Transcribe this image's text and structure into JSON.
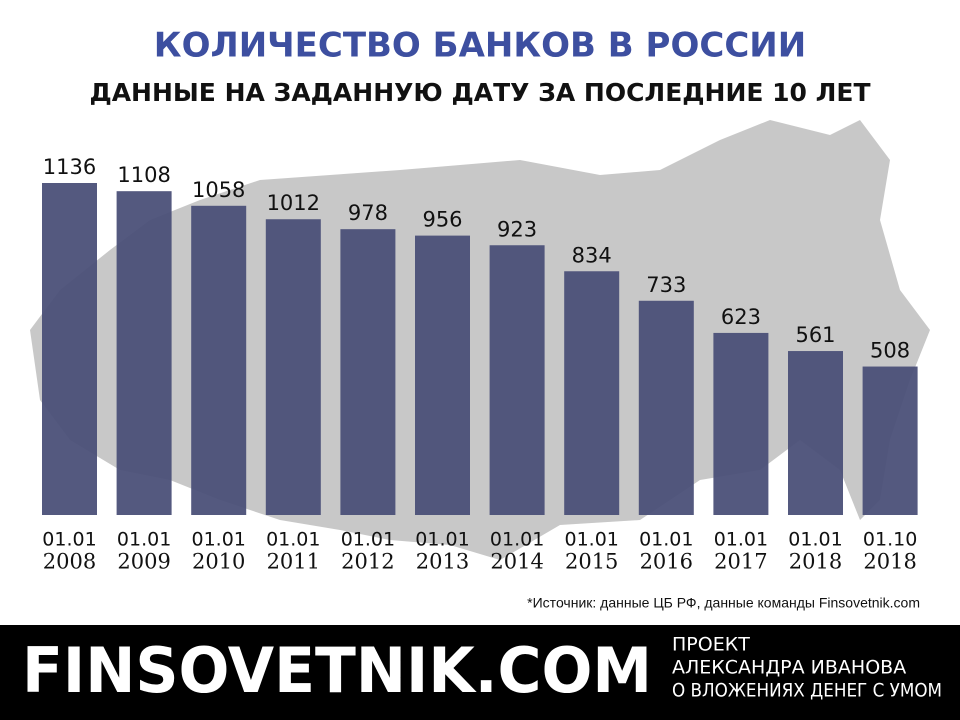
{
  "chart_data": {
    "type": "bar",
    "title": "КОЛИЧЕСТВО БАНКОВ В РОССИИ",
    "subtitle": "ДАННЫЕ НА ЗАДАННУЮ ДАТУ ЗА ПОСЛЕДНИЕ 10 ЛЕТ",
    "categories": [
      [
        "01.01",
        "2008"
      ],
      [
        "01.01",
        "2009"
      ],
      [
        "01.01",
        "2010"
      ],
      [
        "01.01",
        "2011"
      ],
      [
        "01.01",
        "2012"
      ],
      [
        "01.01",
        "2013"
      ],
      [
        "01.01",
        "2014"
      ],
      [
        "01.01",
        "2015"
      ],
      [
        "01.01",
        "2016"
      ],
      [
        "01.01",
        "2017"
      ],
      [
        "01.01",
        "2018"
      ],
      [
        "01.10",
        "2018"
      ]
    ],
    "values": [
      1136,
      1108,
      1058,
      1012,
      978,
      956,
      923,
      834,
      733,
      623,
      561,
      508
    ],
    "color": "#4b5078"
  },
  "source": "*Источник: данные ЦБ РФ, данные команды Finsovetnik.com",
  "footer": {
    "brand": "FINSOVETNIK.COM",
    "tagline": [
      "ПРОЕКТ",
      "АЛЕКСАНДРА ИВАНОВА",
      "О ВЛОЖЕНИЯХ ДЕНЕГ С УМОМ"
    ]
  }
}
